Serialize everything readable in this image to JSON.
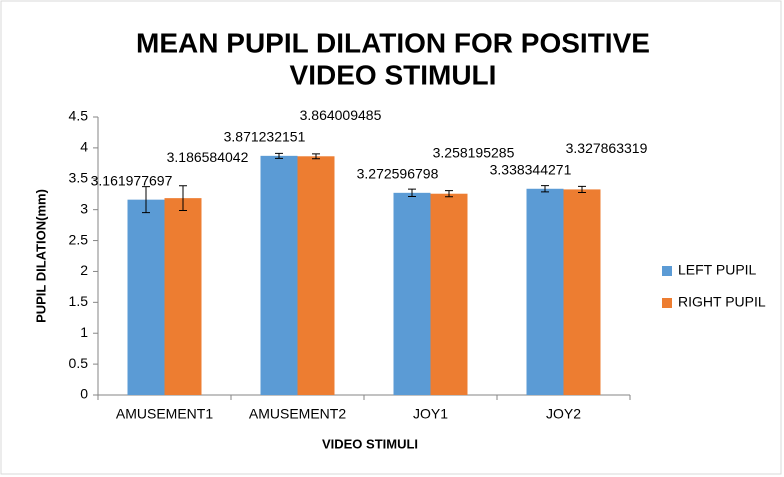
{
  "chart_data": {
    "type": "bar",
    "title": "MEAN PUPIL DILATION FOR POSITIVE",
    "title_line2": "VIDEO STIMULI",
    "xlabel": "VIDEO STIMULI",
    "ylabel": "PUPIL DILATION(mm)",
    "categories": [
      "AMUSEMENT1",
      "AMUSEMENT2",
      "JOY1",
      "JOY2"
    ],
    "series": [
      {
        "name": "LEFT PUPIL",
        "color": "#5b9bd5",
        "values": [
          3.161977697,
          3.871232151,
          3.272596798,
          3.338344271
        ],
        "errors": [
          0.21,
          0.04,
          0.06,
          0.05
        ]
      },
      {
        "name": "RIGHT PUPIL",
        "color": "#ed7d31",
        "values": [
          3.186584042,
          3.864009485,
          3.258195285,
          3.327863319
        ],
        "errors": [
          0.2,
          0.04,
          0.05,
          0.05
        ]
      }
    ],
    "ylim": [
      0,
      4.5
    ],
    "yticks": [
      0,
      0.5,
      1,
      1.5,
      2,
      2.5,
      3,
      3.5,
      4,
      4.5
    ],
    "grid": false,
    "legend": "right"
  }
}
